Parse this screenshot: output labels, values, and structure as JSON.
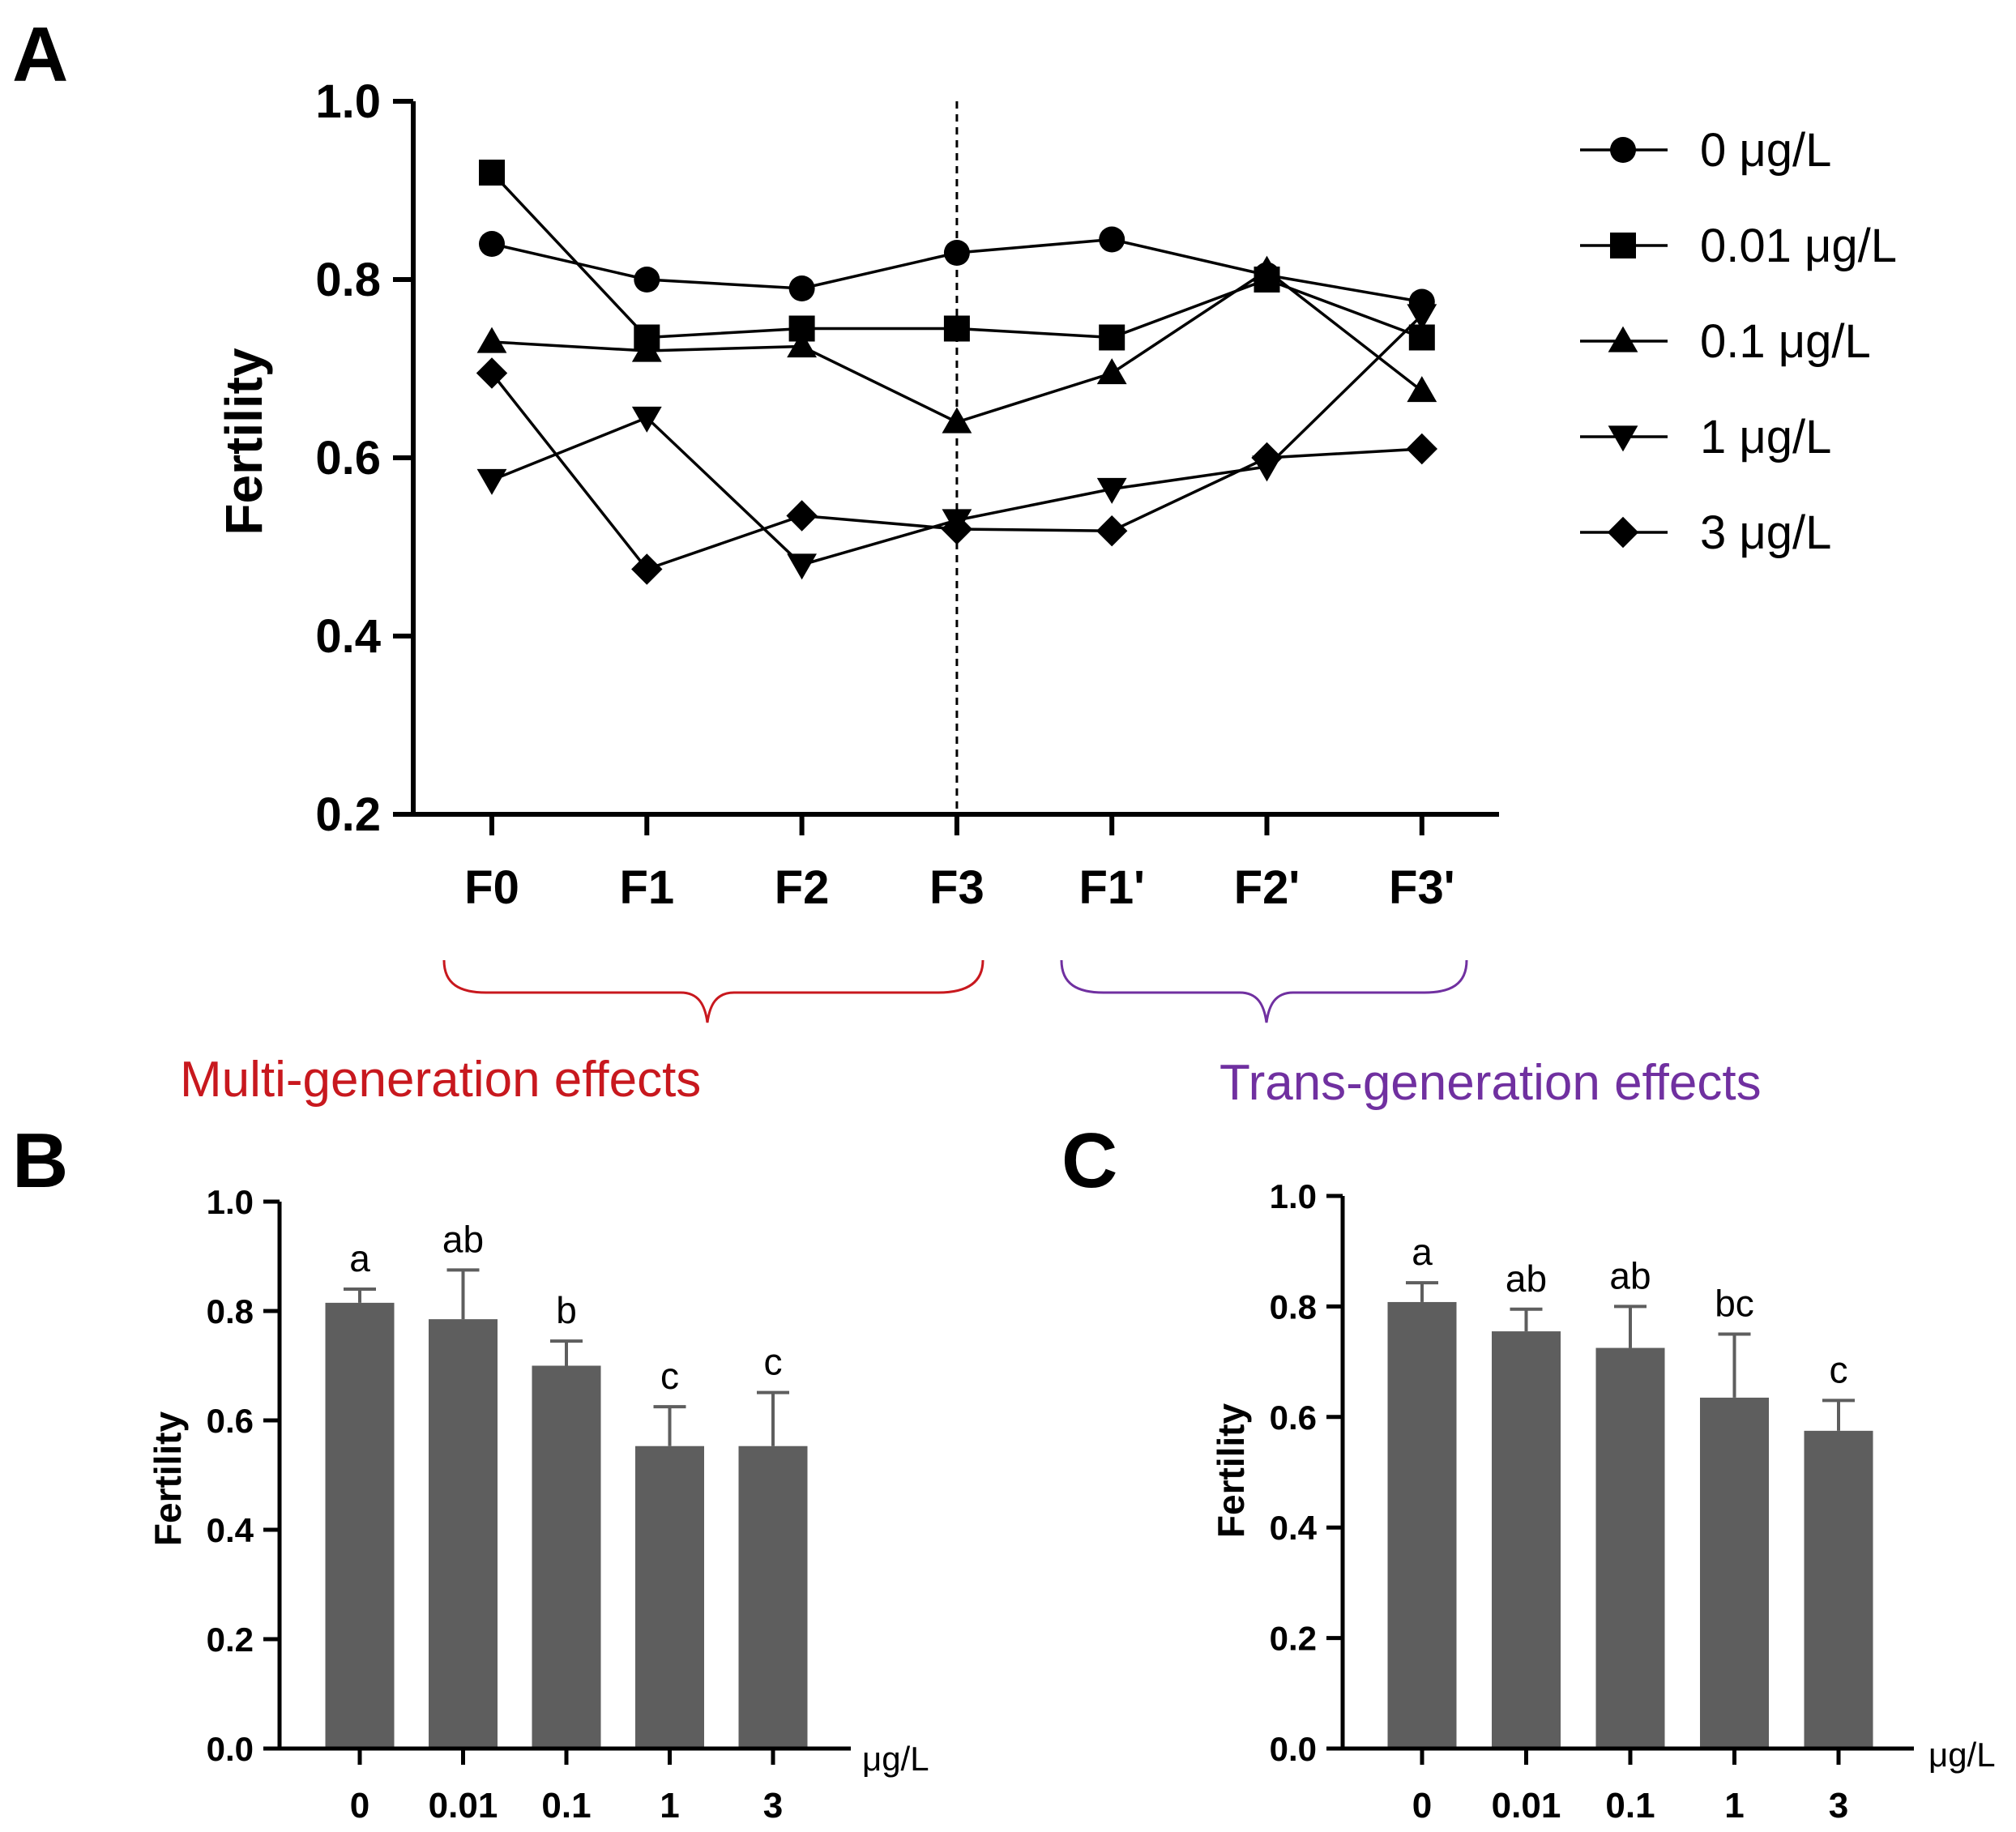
{
  "panels": {
    "a": "A",
    "b": "B",
    "c": "C"
  },
  "annotations": {
    "multi": "Multi-generation effects",
    "trans": "Trans-generation effects",
    "multi_color": "#c8181e",
    "trans_color": "#7030a0"
  },
  "chart_data": [
    {
      "type": "line",
      "panel": "A",
      "title": "",
      "xlabel": "",
      "ylabel": "Fertility",
      "ylim": [
        0.2,
        1.0
      ],
      "yticks": [
        "1.0",
        "0.8",
        "0.6",
        "0.4",
        "0.2"
      ],
      "categories": [
        "F0",
        "F1",
        "F2",
        "F3",
        "F1'",
        "F2'",
        "F3'"
      ],
      "divider_after": "F3",
      "legend_position": "right",
      "series": [
        {
          "name": "0 μg/L",
          "marker": "circle",
          "values": [
            0.84,
            0.8,
            0.79,
            0.83,
            0.845,
            0.805,
            0.775
          ]
        },
        {
          "name": "0.01 μg/L",
          "marker": "square",
          "values": [
            0.92,
            0.735,
            0.745,
            0.745,
            0.735,
            0.8,
            0.735
          ]
        },
        {
          "name": "0.1 μg/L",
          "marker": "triangle-up",
          "values": [
            0.73,
            0.72,
            0.725,
            0.64,
            0.695,
            0.81,
            0.675
          ]
        },
        {
          "name": "1 μg/L",
          "marker": "triangle-down",
          "values": [
            0.575,
            0.645,
            0.48,
            0.53,
            0.565,
            0.59,
            0.76
          ]
        },
        {
          "name": "3 μg/L",
          "marker": "diamond",
          "values": [
            0.695,
            0.475,
            0.535,
            0.52,
            0.518,
            0.6,
            0.61
          ]
        }
      ]
    },
    {
      "type": "bar",
      "panel": "B",
      "title": "",
      "xlabel": "μg/L",
      "ylabel": "Fertility",
      "ylim": [
        0.0,
        1.0
      ],
      "yticks": [
        "1.0",
        "0.8",
        "0.6",
        "0.4",
        "0.2",
        "0.0"
      ],
      "categories": [
        "0",
        "0.01",
        "0.1",
        "1",
        "3"
      ],
      "values": [
        0.815,
        0.785,
        0.7,
        0.553,
        0.553
      ],
      "errors": [
        0.025,
        0.09,
        0.045,
        0.072,
        0.098
      ],
      "labels": [
        "a",
        "ab",
        "b",
        "c",
        "c"
      ],
      "bar_color": "#5e5e5e"
    },
    {
      "type": "bar",
      "panel": "C",
      "title": "",
      "xlabel": "μg/L",
      "ylabel": "Fertility",
      "ylim": [
        0.0,
        1.0
      ],
      "yticks": [
        "1.0",
        "0.8",
        "0.6",
        "0.4",
        "0.2",
        "0.0"
      ],
      "categories": [
        "0",
        "0.01",
        "0.1",
        "1",
        "3"
      ],
      "values": [
        0.808,
        0.755,
        0.725,
        0.635,
        0.575
      ],
      "errors": [
        0.035,
        0.04,
        0.075,
        0.115,
        0.055
      ],
      "labels": [
        "a",
        "ab",
        "ab",
        "bc",
        "c"
      ],
      "bar_color": "#5e5e5e"
    }
  ]
}
